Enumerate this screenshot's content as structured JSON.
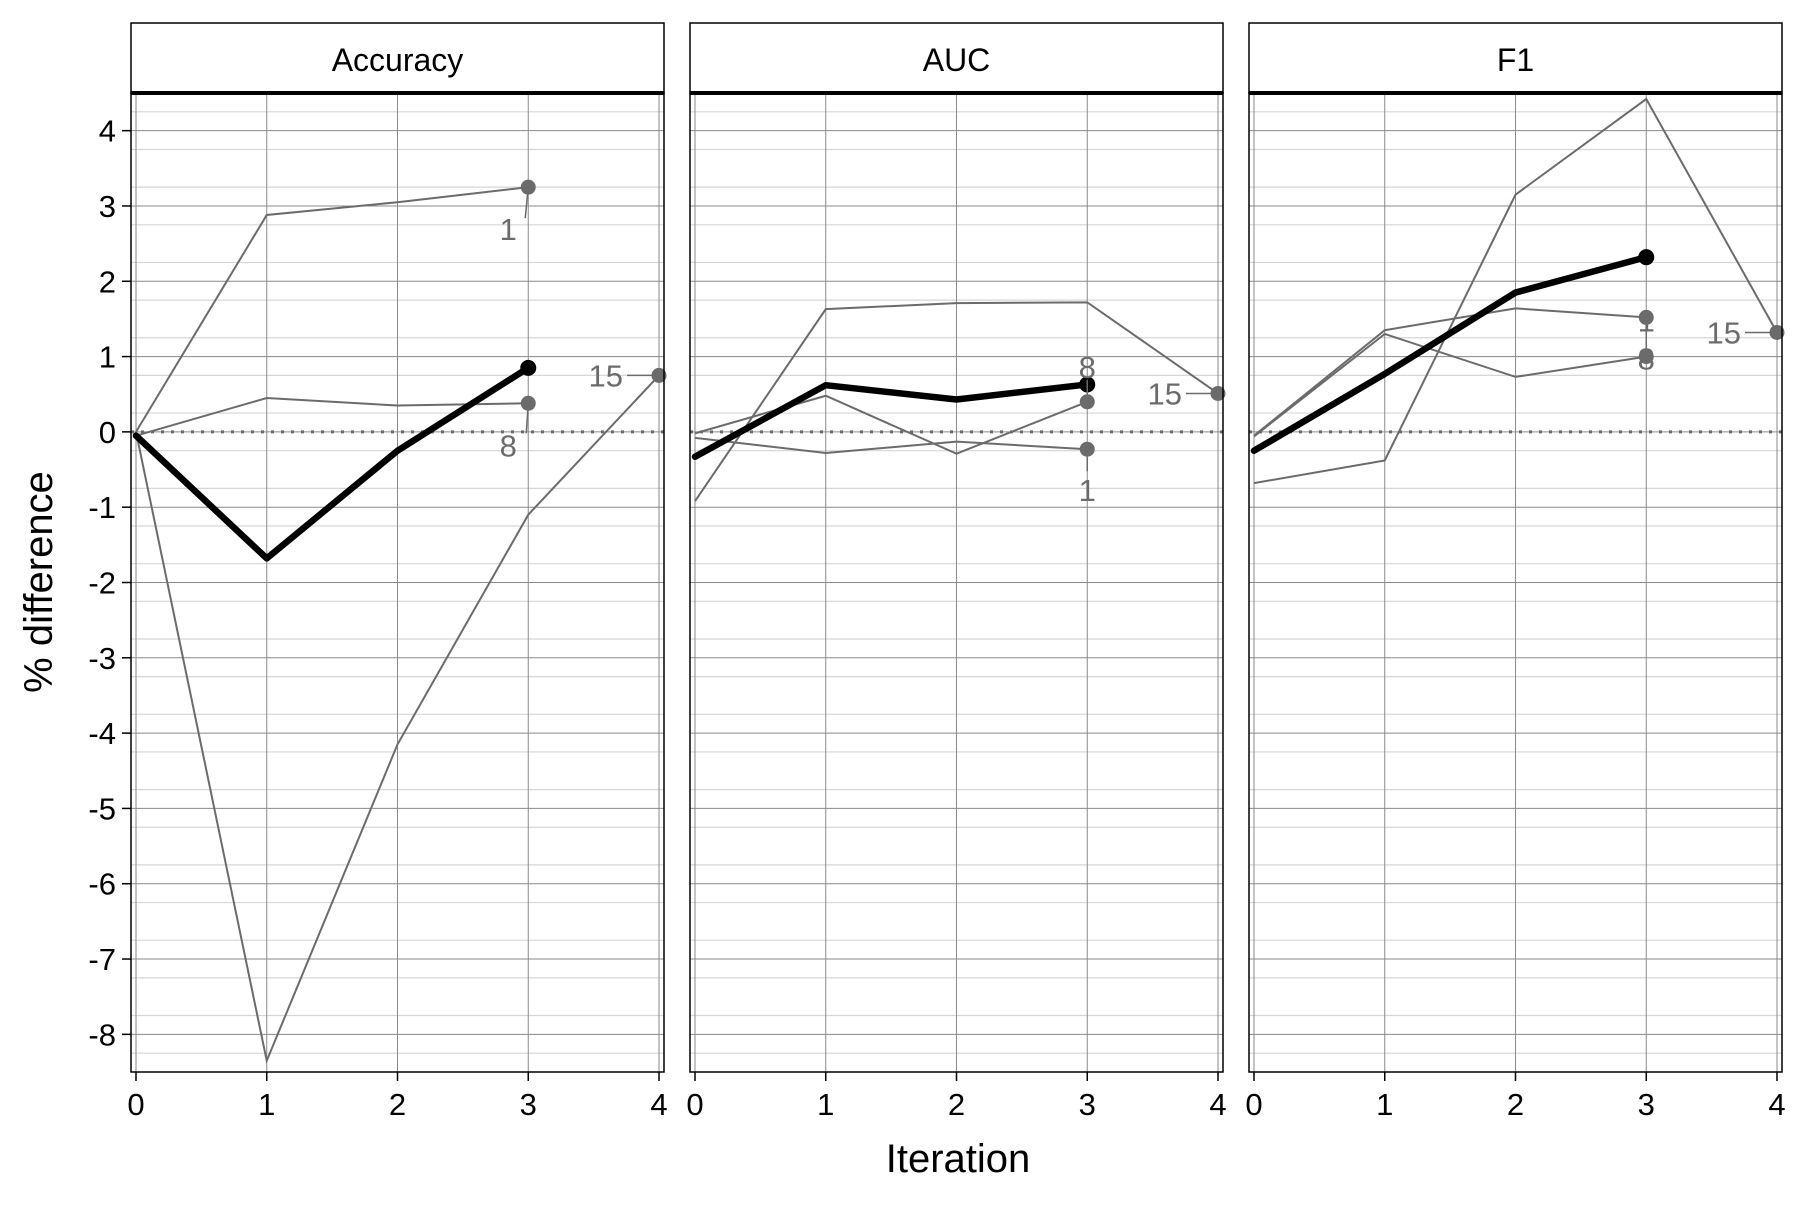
{
  "chart_data": {
    "type": "line",
    "facets": [
      "Accuracy",
      "AUC",
      "F1"
    ],
    "xlabel": "Iteration",
    "ylabel": "% difference",
    "xlim": [
      0,
      4
    ],
    "ylim": [
      -8.5,
      4.5
    ],
    "x_ticks": [
      "0",
      "1",
      "2",
      "3",
      "4"
    ],
    "y_ticks": [
      "4",
      "3",
      "2",
      "1",
      "0",
      "-1",
      "-2",
      "-3",
      "-4",
      "-5",
      "-6",
      "-7",
      "-8"
    ],
    "reference_line_y": 0,
    "colors": {
      "series": "#6b6b6b",
      "mean": "#000000",
      "grid_major": "#8a8a8a",
      "grid_minor": "#d6d6d6",
      "reference": "#6b6b6b"
    },
    "panels": [
      {
        "facet": "Accuracy",
        "series": [
          {
            "label": "1",
            "x": [
              0,
              1,
              2,
              3
            ],
            "y": [
              0.0,
              2.88,
              3.05,
              3.25
            ]
          },
          {
            "label": "8",
            "x": [
              0,
              1,
              2,
              3
            ],
            "y": [
              -0.05,
              0.45,
              0.35,
              0.38
            ]
          },
          {
            "label": "15",
            "x": [
              0,
              1,
              2,
              3,
              4
            ],
            "y": [
              0.0,
              -8.35,
              -4.15,
              -1.1,
              0.75
            ]
          }
        ],
        "mean": {
          "x": [
            0,
            1,
            2,
            3
          ],
          "y": [
            -0.05,
            -1.68,
            -0.25,
            0.85
          ]
        }
      },
      {
        "facet": "AUC",
        "series": [
          {
            "label": "1",
            "x": [
              0,
              1,
              2,
              3
            ],
            "y": [
              -0.08,
              -0.28,
              -0.13,
              -0.23
            ]
          },
          {
            "label": "8",
            "x": [
              0,
              1,
              2,
              3
            ],
            "y": [
              -0.02,
              0.48,
              -0.29,
              0.4
            ]
          },
          {
            "label": "15",
            "x": [
              0,
              1,
              2,
              3,
              4
            ],
            "y": [
              -0.92,
              1.63,
              1.71,
              1.72,
              0.51
            ]
          }
        ],
        "mean": {
          "x": [
            0,
            1,
            2,
            3
          ],
          "y": [
            -0.33,
            0.62,
            0.43,
            0.63
          ]
        }
      },
      {
        "facet": "F1",
        "series": [
          {
            "label": "1",
            "x": [
              0,
              1,
              2,
              3
            ],
            "y": [
              -0.06,
              1.3,
              0.73,
              1.0
            ]
          },
          {
            "label": "8",
            "x": [
              0,
              1,
              2,
              3
            ],
            "y": [
              -0.05,
              1.35,
              1.64,
              1.52
            ]
          },
          {
            "label": "15",
            "x": [
              0,
              1,
              2,
              3,
              4
            ],
            "y": [
              -0.68,
              -0.38,
              3.15,
              4.42,
              1.32
            ]
          }
        ],
        "mean": {
          "x": [
            0,
            1,
            2,
            3
          ],
          "y": [
            -0.25,
            0.77,
            1.85,
            2.32
          ]
        }
      }
    ]
  }
}
